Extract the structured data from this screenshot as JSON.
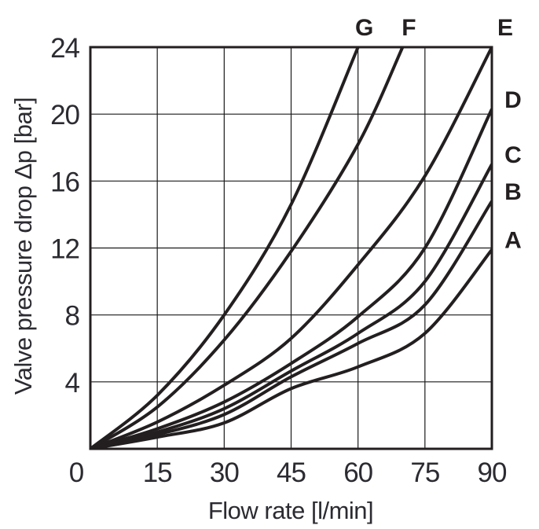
{
  "page": {
    "background_color": "#ffffff",
    "ink_color": "#231f20",
    "grid_color": "#1a1a1a",
    "text_color": "#2b2b31"
  },
  "chart_data": {
    "type": "line",
    "title": "",
    "xlabel": "Flow rate [l/min]",
    "ylabel": "Valve pressure drop Δp [bar]",
    "xlim": [
      0,
      90
    ],
    "ylim": [
      0,
      24
    ],
    "x_ticks": [
      0,
      15,
      30,
      45,
      60,
      75,
      90
    ],
    "y_ticks": [
      4,
      8,
      12,
      16,
      20,
      24
    ],
    "grid": "on",
    "legend_position": "labels-at-curve-ends",
    "series": [
      {
        "name": "A",
        "label_side": "right",
        "x": [
          0,
          15,
          30,
          45,
          60,
          75,
          90
        ],
        "y": [
          0,
          0.7,
          1.55,
          3.6,
          4.9,
          6.9,
          11.9
        ]
      },
      {
        "name": "B",
        "label_side": "right",
        "x": [
          0,
          15,
          30,
          45,
          60,
          75,
          90
        ],
        "y": [
          0,
          0.85,
          2.05,
          4.3,
          6.3,
          8.6,
          14.8
        ]
      },
      {
        "name": "C",
        "label_side": "right",
        "x": [
          0,
          15,
          30,
          45,
          60,
          75,
          90
        ],
        "y": [
          0,
          1.0,
          2.4,
          4.65,
          6.9,
          10.0,
          17.0
        ]
      },
      {
        "name": "D",
        "label_side": "right",
        "x": [
          0,
          15,
          30,
          45,
          60,
          75,
          90
        ],
        "y": [
          0,
          1.2,
          2.8,
          5.1,
          7.9,
          12.0,
          20.3
        ]
      },
      {
        "name": "E",
        "label_side": "top",
        "x": [
          0,
          15,
          30,
          45,
          60,
          75,
          90
        ],
        "y": [
          0,
          1.6,
          3.8,
          6.6,
          11.0,
          16.3,
          24
        ]
      },
      {
        "name": "F",
        "label_side": "top",
        "x": [
          0,
          15,
          30,
          45,
          60,
          70
        ],
        "y": [
          0,
          2.5,
          6.5,
          11.8,
          18.2,
          24
        ]
      },
      {
        "name": "G",
        "label_side": "top",
        "x": [
          0,
          15,
          30,
          45,
          60
        ],
        "y": [
          0,
          3.2,
          8.0,
          14.6,
          24
        ]
      }
    ]
  }
}
